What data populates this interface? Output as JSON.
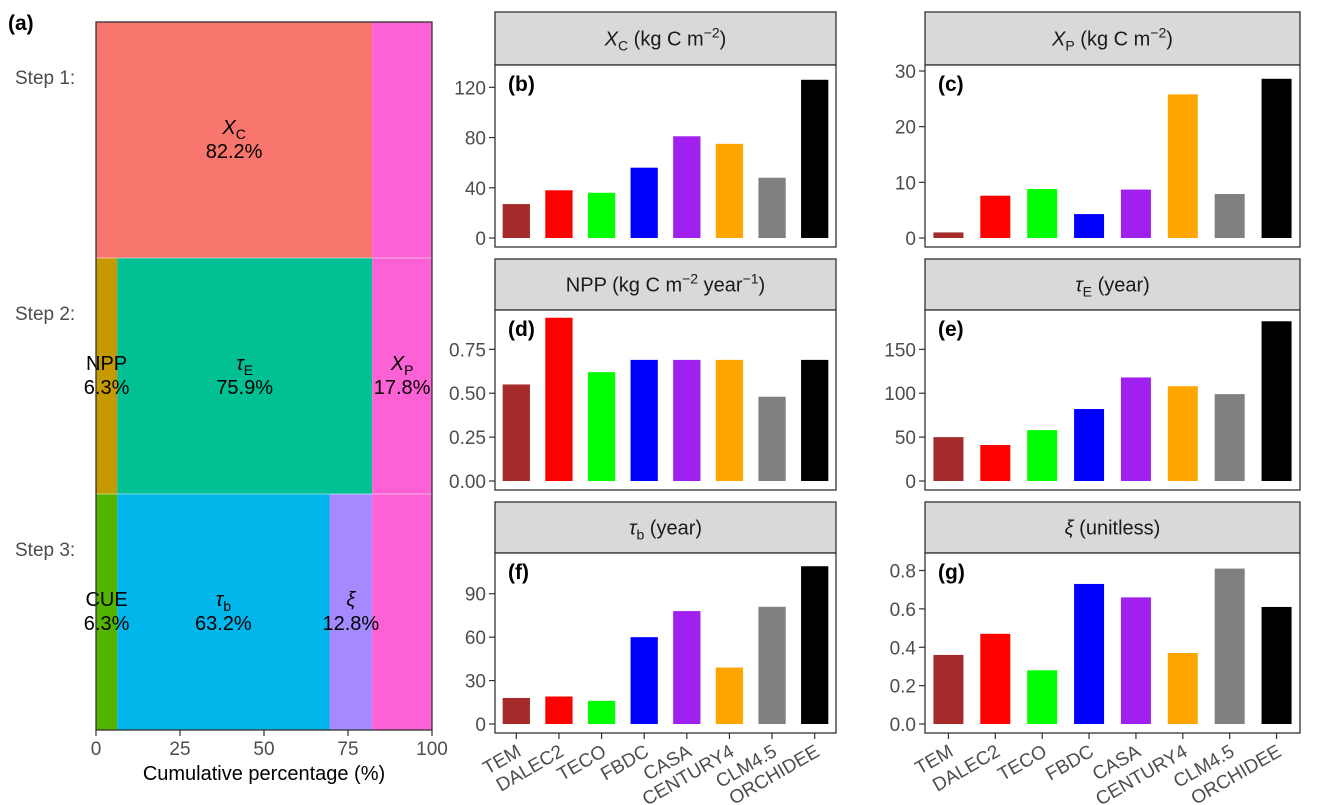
{
  "chart_data": [
    {
      "type": "bar",
      "tag": "(a)",
      "stacked": "horizontal",
      "steps": [
        "Step 1:",
        "Step 2:",
        "Step 3:"
      ],
      "xlabel": "Cumulative percentage (%)",
      "xticks": [
        0,
        25,
        50,
        75,
        100
      ],
      "xlim": [
        0,
        100
      ],
      "segments": [
        {
          "step": 0,
          "name": "X",
          "sub": "C",
          "italic": true,
          "pct_label": "82.2%",
          "start": 0,
          "end": 82.2,
          "color": "#f8766d"
        },
        {
          "step": 0,
          "name": "",
          "sub": "",
          "italic": false,
          "pct_label": "",
          "start": 82.2,
          "end": 100,
          "color": "#fc61d5"
        },
        {
          "step": 1,
          "name": "NPP",
          "sub": "",
          "italic": false,
          "pct_label": "6.3%",
          "start": 0,
          "end": 6.3,
          "color": "#c49a00"
        },
        {
          "step": 1,
          "name": "τ",
          "sub": "E",
          "italic": true,
          "pct_label": "75.9%",
          "start": 6.3,
          "end": 82.2,
          "color": "#00c094"
        },
        {
          "step": 1,
          "name": "X",
          "sub": "P",
          "italic": true,
          "pct_label": "17.8%",
          "start": 82.2,
          "end": 100,
          "color": "#fc61d5"
        },
        {
          "step": 2,
          "name": "CUE",
          "sub": "",
          "italic": false,
          "pct_label": "6.3%",
          "start": 0,
          "end": 6.3,
          "color": "#53b400"
        },
        {
          "step": 2,
          "name": "τ",
          "sub": "b",
          "italic": true,
          "pct_label": "63.2%",
          "start": 6.3,
          "end": 69.5,
          "color": "#00b6eb"
        },
        {
          "step": 2,
          "name": "ξ",
          "sub": "",
          "italic": true,
          "pct_label": "12.8%",
          "start": 69.5,
          "end": 82.2,
          "color": "#a58aff"
        },
        {
          "step": 2,
          "name": "",
          "sub": "",
          "italic": false,
          "pct_label": "",
          "start": 82.2,
          "end": 100,
          "color": "#fc61d5"
        }
      ]
    },
    {
      "type": "bar",
      "tag": "(b)",
      "strip": {
        "sym": "X",
        "sub": "C",
        "unit": " (kg C m",
        "sup": "−2",
        "tail": ")"
      },
      "categories": [
        "TEM",
        "DALEC2",
        "TECO",
        "FBDC",
        "CASA",
        "CENTURY4",
        "CLM4.5",
        "ORCHIDEE"
      ],
      "values": [
        27,
        38,
        36,
        56,
        81,
        75,
        48,
        126
      ],
      "ylim": [
        0,
        133
      ],
      "yticks": [
        0,
        40,
        80,
        120
      ],
      "tick_labels": [
        "0",
        "40",
        "80",
        "120"
      ]
    },
    {
      "type": "bar",
      "tag": "(c)",
      "strip": {
        "sym": "X",
        "sub": "P",
        "unit": " (kg C m",
        "sup": "−2",
        "tail": ")"
      },
      "categories": [
        "TEM",
        "DALEC2",
        "TECO",
        "FBDC",
        "CASA",
        "CENTURY4",
        "CLM4.5",
        "ORCHIDEE"
      ],
      "values": [
        1.0,
        7.6,
        8.8,
        4.3,
        8.7,
        25.8,
        7.9,
        28.6
      ],
      "ylim": [
        0,
        30.0
      ],
      "yticks": [
        0,
        10,
        20,
        30
      ],
      "tick_labels": [
        "0",
        "10",
        "20",
        "30"
      ]
    },
    {
      "type": "bar",
      "tag": "(d)",
      "strip": {
        "sym": "",
        "sub": "",
        "unit": "NPP (kg C m",
        "sup": "−2",
        "tail": " year",
        "sup2": "−1",
        "tail2": ")"
      },
      "categories": [
        "TEM",
        "DALEC2",
        "TECO",
        "FBDC",
        "CASA",
        "CENTURY4",
        "CLM4.5",
        "ORCHIDEE"
      ],
      "values": [
        0.55,
        0.93,
        0.62,
        0.69,
        0.69,
        0.69,
        0.48,
        0.69
      ],
      "ylim": [
        0,
        0.94
      ],
      "yticks": [
        0,
        0.25,
        0.5,
        0.75
      ],
      "tick_labels": [
        "0.00",
        "0.25",
        "0.50",
        "0.75"
      ]
    },
    {
      "type": "bar",
      "tag": "(e)",
      "strip": {
        "sym": "τ",
        "sub": "E",
        "unit": " (year)",
        "sup": "",
        "tail": ""
      },
      "categories": [
        "TEM",
        "DALEC2",
        "TECO",
        "FBDC",
        "CASA",
        "CENTURY4",
        "CLM4.5",
        "ORCHIDEE"
      ],
      "values": [
        50,
        41,
        58,
        82,
        118,
        108,
        99,
        182
      ],
      "ylim": [
        0,
        188
      ],
      "yticks": [
        0,
        50,
        100,
        150
      ],
      "tick_labels": [
        "0",
        "50",
        "100",
        "150"
      ]
    },
    {
      "type": "bar",
      "tag": "(f)",
      "strip": {
        "sym": "τ",
        "sub": "b",
        "unit": " (year)",
        "sup": "",
        "tail": ""
      },
      "categories": [
        "TEM",
        "DALEC2",
        "TECO",
        "FBDC",
        "CASA",
        "CENTURY4",
        "CLM4.5",
        "ORCHIDEE"
      ],
      "values": [
        18,
        19,
        16,
        60,
        78,
        39,
        81,
        109
      ],
      "ylim": [
        0,
        114
      ],
      "yticks": [
        0,
        30,
        60,
        90
      ],
      "tick_labels": [
        "0",
        "30",
        "60",
        "90"
      ]
    },
    {
      "type": "bar",
      "tag": "(g)",
      "strip": {
        "sym": "ξ",
        "sub": "",
        "unit": " (unitless)",
        "sup": "",
        "tail": ""
      },
      "categories": [
        "TEM",
        "DALEC2",
        "TECO",
        "FBDC",
        "CASA",
        "CENTURY4",
        "CLM4.5",
        "ORCHIDEE"
      ],
      "values": [
        0.36,
        0.47,
        0.28,
        0.73,
        0.66,
        0.37,
        0.81,
        0.61
      ],
      "ylim": [
        0,
        0.86
      ],
      "yticks": [
        0,
        0.2,
        0.4,
        0.6,
        0.8
      ],
      "tick_labels": [
        "0.0",
        "0.2",
        "0.4",
        "0.6",
        "0.8"
      ]
    }
  ],
  "model_colors": [
    "#a52a2a",
    "#ff0000",
    "#00ff00",
    "#0000ff",
    "#a020f0",
    "#ffa500",
    "#808080",
    "#000000"
  ]
}
